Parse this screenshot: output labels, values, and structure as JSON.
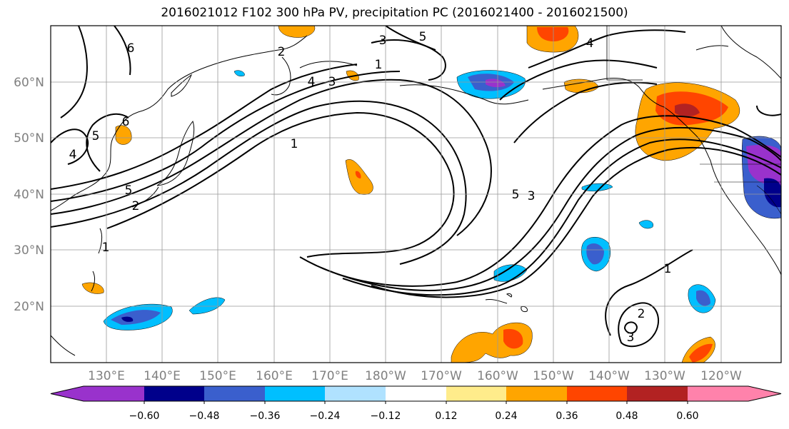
{
  "title": "2016021012 F102 300 hPa PV, precipitation PC (2016021400 - 2016021500)",
  "map": {
    "lon_labels": [
      "130°E",
      "140°E",
      "150°E",
      "160°E",
      "170°E",
      "180°W",
      "170°W",
      "160°W",
      "150°W",
      "140°W",
      "130°W",
      "120°W"
    ],
    "lat_labels": [
      "60°N",
      "50°N",
      "40°N",
      "30°N",
      "20°N"
    ],
    "pv_contour_labels": [
      "1",
      "2",
      "3",
      "4",
      "5",
      "6"
    ]
  },
  "colorbar": {
    "ticks": [
      "−0.60",
      "−0.48",
      "−0.36",
      "−0.24",
      "−0.12",
      "0.12",
      "0.24",
      "0.36",
      "0.48",
      "0.60"
    ],
    "colors": [
      "#9932CC",
      "#00008B",
      "#3A5FCD",
      "#00BFFF",
      "#B0E2FF",
      "#FFFFFF",
      "#FFEC8B",
      "#FFA500",
      "#FF4500",
      "#B22222",
      "#FF82AB"
    ]
  }
}
